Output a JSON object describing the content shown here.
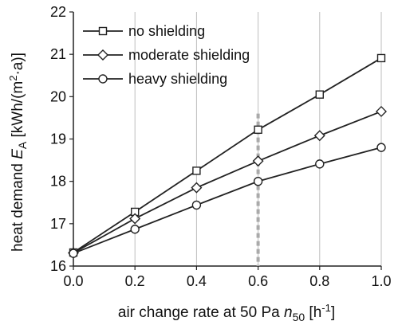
{
  "chart_data": {
    "type": "line",
    "x": [
      0.0,
      0.2,
      0.4,
      0.6,
      0.8,
      1.0
    ],
    "x_tick_labels": [
      "0.0",
      "0.2",
      "0.4",
      "0.6",
      "0.8",
      "1.0"
    ],
    "y_tick_labels": [
      "16",
      "17",
      "18",
      "19",
      "20",
      "21",
      "22"
    ],
    "xlim": [
      0.0,
      1.0
    ],
    "ylim": [
      16,
      22
    ],
    "xlabel": {
      "before": "air change rate at 50 Pa ",
      "symbol": "n",
      "subscript": "50",
      "after": " [h",
      "superscript": "-1",
      "end": "]"
    },
    "ylabel": {
      "before": "heat demand ",
      "symbol": "E",
      "subscript": "A",
      "after": " [kWh/(m",
      "superscript": "2",
      "end": "·a)]"
    },
    "series": [
      {
        "name": "no shielding",
        "marker": "square",
        "values": [
          16.32,
          17.28,
          18.25,
          19.22,
          20.05,
          20.91
        ]
      },
      {
        "name": "moderate shielding",
        "marker": "diamond",
        "values": [
          16.31,
          17.12,
          17.85,
          18.48,
          19.08,
          19.65
        ]
      },
      {
        "name": "heavy shielding",
        "marker": "circle",
        "values": [
          16.3,
          16.87,
          17.44,
          18.0,
          18.41,
          18.8
        ]
      }
    ],
    "reference_line": {
      "x": 0.6,
      "style": "dashed",
      "color": "#aaaaaa"
    },
    "grid": "vertical",
    "legend_position": "top-left",
    "colors": {
      "line": "#222222",
      "marker_fill": "#ffffff",
      "grid": "#bdbdbd"
    }
  }
}
